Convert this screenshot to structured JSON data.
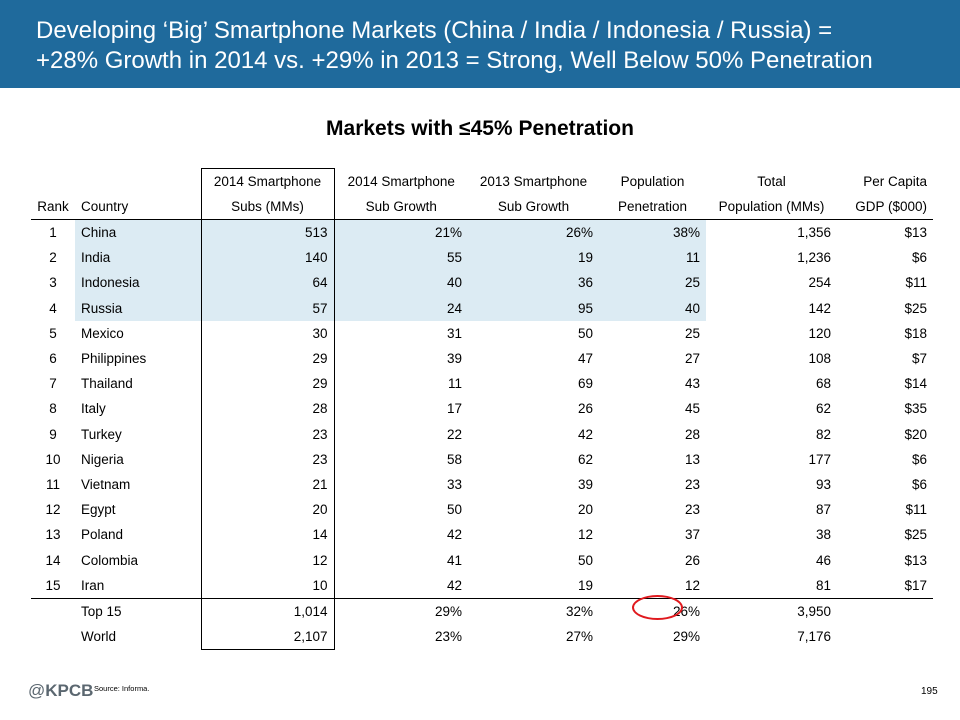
{
  "header": {
    "title_line1": "Developing ‘Big’ Smartphone Markets (China / India / Indonesia / Russia) =",
    "title_line2": "+28% Growth in 2014 vs. +29% in 2013 = Strong, Well Below 50% Penetration",
    "background_color": "#1f6a9c"
  },
  "subtitle": "Markets with ≤45% Penetration",
  "table": {
    "headers_row1": [
      "",
      "",
      "2014 Smartphone",
      "2014 Smartphone",
      "2013 Smartphone",
      "Population",
      "Total",
      "Per Capita"
    ],
    "headers_row2": [
      "Rank",
      "Country",
      "Subs (MMs)",
      "Sub Growth",
      "Sub Growth",
      "Penetration",
      "Population (MMs)",
      "GDP ($000)"
    ],
    "rows": [
      [
        "1",
        "China",
        "513",
        "21%",
        "26%",
        "38%",
        "1,356",
        "$13"
      ],
      [
        "2",
        "India",
        "140",
        "55",
        "19",
        "11",
        "1,236",
        "$6"
      ],
      [
        "3",
        "Indonesia",
        "64",
        "40",
        "36",
        "25",
        "254",
        "$11"
      ],
      [
        "4",
        "Russia",
        "57",
        "24",
        "95",
        "40",
        "142",
        "$25"
      ],
      [
        "5",
        "Mexico",
        "30",
        "31",
        "50",
        "25",
        "120",
        "$18"
      ],
      [
        "6",
        "Philippines",
        "29",
        "39",
        "47",
        "27",
        "108",
        "$7"
      ],
      [
        "7",
        "Thailand",
        "29",
        "11",
        "69",
        "43",
        "68",
        "$14"
      ],
      [
        "8",
        "Italy",
        "28",
        "17",
        "26",
        "45",
        "62",
        "$35"
      ],
      [
        "9",
        "Turkey",
        "23",
        "22",
        "42",
        "28",
        "82",
        "$20"
      ],
      [
        "10",
        "Nigeria",
        "23",
        "58",
        "62",
        "13",
        "177",
        "$6"
      ],
      [
        "11",
        "Vietnam",
        "21",
        "33",
        "39",
        "23",
        "93",
        "$6"
      ],
      [
        "12",
        "Egypt",
        "20",
        "50",
        "20",
        "23",
        "87",
        "$11"
      ],
      [
        "13",
        "Poland",
        "14",
        "42",
        "12",
        "37",
        "38",
        "$25"
      ],
      [
        "14",
        "Colombia",
        "12",
        "41",
        "50",
        "26",
        "46",
        "$13"
      ],
      [
        "15",
        "Iran",
        "10",
        "42",
        "19",
        "12",
        "81",
        "$17"
      ]
    ],
    "totals": [
      [
        "",
        "Top 15",
        "1,014",
        "29%",
        "32%",
        "26%",
        "3,950",
        ""
      ],
      [
        "",
        "World",
        "2,107",
        "23%",
        "27%",
        "29%",
        "7,176",
        ""
      ]
    ],
    "highlight_color": "#dcebf3",
    "circle_color": "#e0191e"
  },
  "footer": {
    "logo_at": "@",
    "logo_text": "KPCB",
    "source": "Source: Informa.",
    "page_number": "195"
  }
}
